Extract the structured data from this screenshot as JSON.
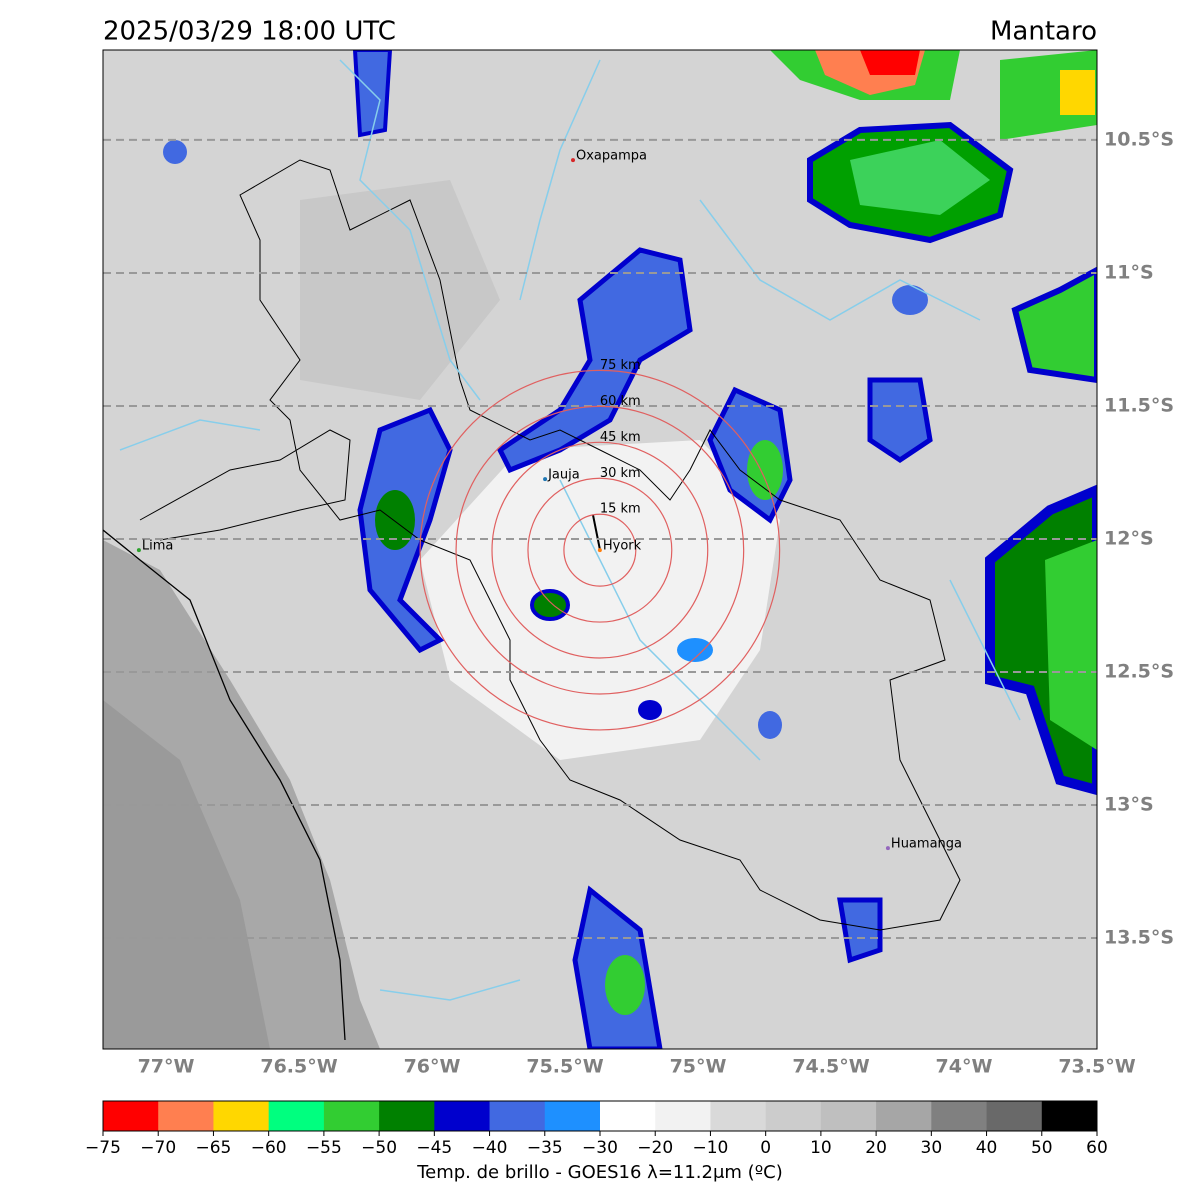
{
  "header": {
    "title": "2025/03/29 18:00 UTC",
    "region": "Mantaro"
  },
  "map": {
    "xlim": [
      -77.237,
      -73.5
    ],
    "ylim": [
      -13.917,
      -10.162
    ],
    "grid": true,
    "xticks": [
      {
        "value": -77,
        "label": "77°W"
      },
      {
        "value": -76.5,
        "label": "76.5°W"
      },
      {
        "value": -76,
        "label": "76°W"
      },
      {
        "value": -75.5,
        "label": "75.5°W"
      },
      {
        "value": -75,
        "label": "75°W"
      },
      {
        "value": -74.5,
        "label": "74.5°W"
      },
      {
        "value": -74,
        "label": "74°W"
      },
      {
        "value": -73.5,
        "label": "73.5°W"
      }
    ],
    "yticks": [
      {
        "value": -10.5,
        "label": "10.5°S"
      },
      {
        "value": -11,
        "label": "11°S"
      },
      {
        "value": -11.5,
        "label": "11.5°S"
      },
      {
        "value": -12,
        "label": "12°S"
      },
      {
        "value": -12.5,
        "label": "12.5°S"
      },
      {
        "value": -13,
        "label": "13°S"
      },
      {
        "value": -13.5,
        "label": "13.5°S"
      }
    ],
    "cities": [
      {
        "name": "Oxapampa",
        "lon": -75.47,
        "lat": -10.576,
        "color": "#d62728"
      },
      {
        "name": "Jauja",
        "lon": -75.575,
        "lat": -11.775,
        "color": "#1f77b4"
      },
      {
        "name": "Lima",
        "lon": -77.102,
        "lat": -12.042,
        "color": "#2ca02c"
      },
      {
        "name": "Hyork",
        "lon": -75.369,
        "lat": -12.042,
        "color": "#ff7f0e"
      },
      {
        "name": "Huamanga",
        "lon": -74.286,
        "lat": -13.162,
        "color": "#9467bd"
      }
    ],
    "rings": [
      {
        "value": 15,
        "label": "15 km"
      },
      {
        "value": 30,
        "label": "30 km"
      },
      {
        "value": 45,
        "label": "45 km"
      },
      {
        "value": 60,
        "label": "60 km"
      },
      {
        "value": 75,
        "label": "75 km"
      }
    ],
    "ring_color": "#e06060"
  },
  "colorbar": {
    "ticks": [
      {
        "value": -75,
        "label": "−75"
      },
      {
        "value": -70,
        "label": "−70"
      },
      {
        "value": -65,
        "label": "−65"
      },
      {
        "value": -60,
        "label": "−60"
      },
      {
        "value": -55,
        "label": "−55"
      },
      {
        "value": -50,
        "label": "−50"
      },
      {
        "value": -45,
        "label": "−45"
      },
      {
        "value": -40,
        "label": "−40"
      },
      {
        "value": -35,
        "label": "−35"
      },
      {
        "value": -30,
        "label": "−30"
      },
      {
        "value": -20,
        "label": "−20"
      },
      {
        "value": -10,
        "label": "−10"
      },
      0,
      10,
      20,
      30,
      40,
      50,
      60
    ],
    "colors": [
      "#ff0000",
      "#ff7f50",
      "#ffd700",
      "#00ff7f",
      "#32cd32",
      "#008000",
      "#0000cd",
      "#4169e1",
      "#1e90ff",
      "#ffffff",
      "#f2f2f2",
      "#d9d9d9",
      "#cccccc",
      "#bfbfbf",
      "#a6a6a6",
      "#808080",
      "#696969",
      "#000000"
    ],
    "label": "Temp. de brillo - GOES16 λ=11.2μm (ºC)"
  }
}
